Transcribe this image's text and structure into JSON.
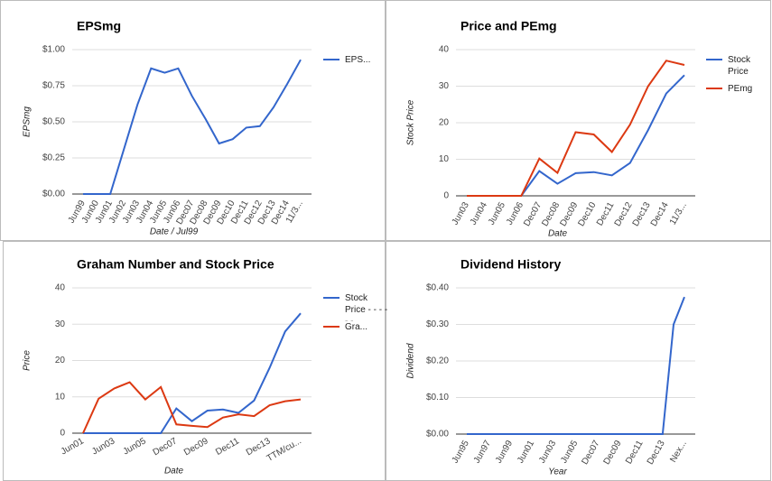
{
  "chart_data": [
    {
      "type": "line",
      "title": "EPSmg",
      "x_label": "Date / Jul99",
      "y_label": "EPSmg",
      "categories": [
        "Jun99",
        "Jun00",
        "Jun01",
        "Jun02",
        "Jun03",
        "Jun04",
        "Jun05",
        "Jun06",
        "Dec07",
        "Dec08",
        "Dec09",
        "Dec10",
        "Dec11",
        "Dec12",
        "Dec13",
        "Dec14",
        "11/3..."
      ],
      "series": [
        {
          "name": "EPS...",
          "color": "#3366cc",
          "values": [
            0,
            0,
            0,
            0.31,
            0.62,
            0.87,
            0.84,
            0.87,
            0.68,
            0.52,
            0.35,
            0.38,
            0.46,
            0.47,
            0.6,
            0.76,
            0.93
          ]
        }
      ],
      "ylim": [
        0,
        1
      ],
      "yticks": [
        {
          "value": 0,
          "label": "$0.00"
        },
        {
          "value": 0.25,
          "label": "$0.25"
        },
        {
          "value": 0.5,
          "label": "$0.50"
        },
        {
          "value": 0.75,
          "label": "$0.75"
        },
        {
          "value": 1,
          "label": "$1.00"
        }
      ],
      "grid": true,
      "legend": "right"
    },
    {
      "type": "line",
      "title": "Price and PEmg",
      "x_label": "Date",
      "y_label": "Stock Price",
      "categories": [
        "Jun03",
        "Jun04",
        "Jun05",
        "Jun06",
        "Dec07",
        "Dec08",
        "Dec09",
        "Dec10",
        "Dec11",
        "Dec12",
        "Dec13",
        "Dec14",
        "11/3..."
      ],
      "series": [
        {
          "name": "Stock Price",
          "color": "#3366cc",
          "values": [
            0,
            0,
            0,
            0,
            6.8,
            3.3,
            6.2,
            6.5,
            5.6,
            9,
            18,
            28,
            33
          ]
        },
        {
          "name": "PEmg",
          "color": "#dc3912",
          "values": [
            0,
            0,
            0,
            0,
            10.2,
            6.3,
            17.4,
            16.8,
            12,
            19.5,
            30,
            37,
            35.8
          ]
        }
      ],
      "ylim": [
        0,
        40
      ],
      "yticks": [
        0,
        10,
        20,
        30,
        40
      ],
      "grid": true,
      "legend": "right"
    },
    {
      "type": "line",
      "title": "Graham Number and Stock Price",
      "x_label": "Date",
      "y_label": "Price",
      "categories": [
        "Jun01",
        null,
        "Jun03",
        null,
        "Jun05",
        null,
        "Dec07",
        null,
        "Dec09",
        null,
        "Dec11",
        null,
        "Dec13",
        null,
        "TTM/cu..."
      ],
      "series": [
        {
          "name": "Stock Price - - - - - -",
          "color": "#3366cc",
          "values": [
            0,
            0,
            0,
            0,
            0,
            0,
            6.8,
            3.3,
            6.2,
            6.5,
            5.6,
            9,
            18,
            28,
            33
          ]
        },
        {
          "name": "Gra...",
          "color": "#dc3912",
          "values": [
            0,
            9.5,
            12.3,
            14,
            9.3,
            12.7,
            2.4,
            2,
            1.7,
            4.3,
            5.2,
            4.7,
            7.7,
            8.8,
            9.3
          ]
        }
      ],
      "ylim": [
        0,
        40
      ],
      "yticks": [
        0,
        10,
        20,
        30,
        40
      ],
      "grid": true,
      "legend": "right"
    },
    {
      "type": "line",
      "title": "Dividend History",
      "x_label": "Year",
      "y_label": "Dividend",
      "categories": [
        "Jun95",
        null,
        "Jun97",
        null,
        "Jun99",
        null,
        "Jun01",
        null,
        "Jun03",
        null,
        "Jun05",
        null,
        "Dec07",
        null,
        "Dec09",
        null,
        "Dec11",
        null,
        "Dec13",
        null,
        "Nex..."
      ],
      "series": [
        {
          "color": "#3366cc",
          "values": [
            0,
            0,
            0,
            0,
            0,
            0,
            0,
            0,
            0,
            0,
            0,
            0,
            0,
            0,
            0,
            0,
            0,
            0,
            0,
            0.3,
            0.375
          ]
        }
      ],
      "ylim": [
        0,
        0.4
      ],
      "yticks": [
        {
          "value": 0,
          "label": "$0.00"
        },
        {
          "value": 0.1,
          "label": "$0.10"
        },
        {
          "value": 0.2,
          "label": "$0.20"
        },
        {
          "value": 0.3,
          "label": "$0.30"
        },
        {
          "value": 0.4,
          "label": "$0.40"
        }
      ],
      "grid": true
    }
  ]
}
